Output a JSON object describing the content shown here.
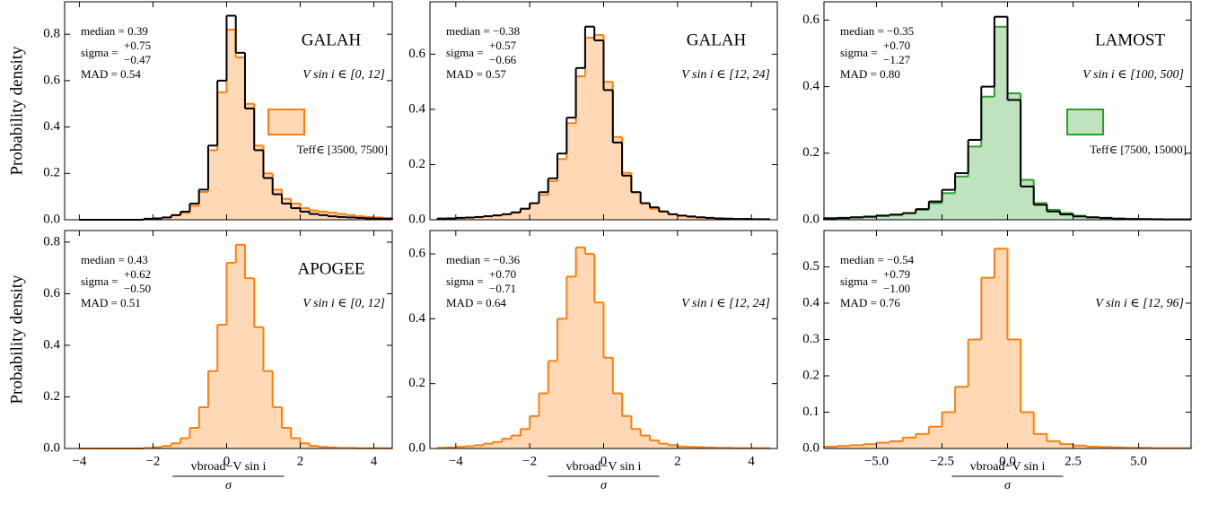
{
  "chart_data": [
    {
      "type": "histogram",
      "ylabel": "Probability density",
      "xlim": [
        -4.4,
        4.5
      ],
      "ylim": [
        0,
        0.94
      ],
      "xticks": [
        -4,
        -2,
        0,
        2,
        4
      ],
      "yticks": [
        {
          "value": 0,
          "label": "0.0"
        },
        0.2,
        0.4,
        0.6,
        0.8
      ],
      "bins": [
        -4,
        -3.75,
        -3.5,
        -3.25,
        -3,
        -2.75,
        -2.5,
        -2.25,
        -2,
        -1.75,
        -1.5,
        -1.25,
        -1,
        -0.75,
        -0.5,
        -0.25,
        0,
        0.25,
        0.5,
        0.75,
        1,
        1.25,
        1.5,
        1.75,
        2,
        2.25,
        2.5,
        2.75,
        3,
        3.25,
        3.5,
        3.75,
        4,
        4.25,
        4.5
      ],
      "series": [
        {
          "name": "Teff∈ [3500, 7500]",
          "color": "#ff7f0e",
          "fill": true,
          "values": [
            0,
            0,
            0,
            0,
            0,
            0,
            0,
            0.005,
            0.005,
            0.01,
            0.02,
            0.03,
            0.06,
            0.12,
            0.3,
            0.55,
            0.82,
            0.7,
            0.5,
            0.32,
            0.2,
            0.13,
            0.09,
            0.07,
            0.05,
            0.04,
            0.035,
            0.03,
            0.025,
            0.02,
            0.015,
            0.012,
            0.01,
            0.008
          ]
        },
        {
          "color": "#000000",
          "fill": false,
          "values": [
            0,
            0,
            0,
            0,
            0,
            0,
            0,
            0.004,
            0.006,
            0.01,
            0.02,
            0.035,
            0.07,
            0.13,
            0.32,
            0.6,
            0.88,
            0.72,
            0.48,
            0.3,
            0.18,
            0.11,
            0.07,
            0.05,
            0.035,
            0.025,
            0.02,
            0.015,
            0.012,
            0.01,
            0.008,
            0.006,
            0.005,
            0.004
          ]
        }
      ],
      "annotations": {
        "median": "median = 0.39",
        "sigma": "sigma =",
        "sigma_plus": "+0.75",
        "sigma_minus": "−0.47",
        "mad": "MAD = 0.54",
        "survey": "GALAH",
        "vsini": "V sin i ∈ [0, 12]"
      }
    },
    {
      "type": "histogram",
      "xlim": [
        -4.7,
        4.7
      ],
      "ylim": [
        0,
        0.79
      ],
      "xticks": [
        -4,
        -2,
        0,
        2,
        4
      ],
      "yticks": [
        {
          "value": 0,
          "label": "0.0"
        },
        0.2,
        0.4,
        0.6
      ],
      "bins": [
        -4.5,
        -4.25,
        -4,
        -3.75,
        -3.5,
        -3.25,
        -3,
        -2.75,
        -2.5,
        -2.25,
        -2,
        -1.75,
        -1.5,
        -1.25,
        -1,
        -0.75,
        -0.5,
        -0.25,
        0,
        0.25,
        0.5,
        0.75,
        1,
        1.25,
        1.5,
        1.75,
        2,
        2.25,
        2.5,
        2.75,
        3,
        3.25,
        3.5,
        3.75,
        4,
        4.25,
        4.5
      ],
      "series": [
        {
          "color": "#ff7f0e",
          "fill": true,
          "values": [
            0.005,
            0.005,
            0.006,
            0.008,
            0.01,
            0.012,
            0.015,
            0.02,
            0.025,
            0.04,
            0.06,
            0.09,
            0.14,
            0.22,
            0.35,
            0.52,
            0.66,
            0.67,
            0.5,
            0.3,
            0.17,
            0.1,
            0.06,
            0.04,
            0.03,
            0.02,
            0.015,
            0.01,
            0.008,
            0.006,
            0.005,
            0.004,
            0.003,
            0.003,
            0.002,
            0.002
          ]
        },
        {
          "color": "#000000",
          "fill": false,
          "values": [
            0.004,
            0.005,
            0.007,
            0.008,
            0.01,
            0.013,
            0.016,
            0.02,
            0.027,
            0.04,
            0.06,
            0.1,
            0.15,
            0.24,
            0.37,
            0.55,
            0.7,
            0.65,
            0.47,
            0.28,
            0.16,
            0.1,
            0.06,
            0.045,
            0.03,
            0.02,
            0.015,
            0.012,
            0.009,
            0.007,
            0.005,
            0.004,
            0.003,
            0.003,
            0.002,
            0.002
          ]
        }
      ],
      "annotations": {
        "median": "median = −0.38",
        "sigma": "sigma =",
        "sigma_plus": "+0.57",
        "sigma_minus": "−0.66",
        "mad": "MAD = 0.57",
        "survey": "GALAH",
        "vsini": "V sin i ∈ [12, 24]"
      }
    },
    {
      "type": "histogram",
      "xlim": [
        -7,
        7
      ],
      "ylim": [
        0,
        0.655
      ],
      "xticks": [
        -5,
        -2.5,
        0,
        2.5,
        5
      ],
      "yticks": [
        {
          "value": 0,
          "label": "0.0"
        },
        0.2,
        0.4,
        0.6
      ],
      "bins": [
        -7,
        -6.5,
        -6,
        -5.5,
        -5,
        -4.5,
        -4,
        -3.5,
        -3,
        -2.5,
        -2,
        -1.5,
        -1,
        -0.5,
        0,
        0.5,
        1,
        1.5,
        2,
        2.5,
        3,
        3.5,
        4,
        4.5,
        5,
        5.5,
        6,
        6.5,
        7
      ],
      "series": [
        {
          "name": "Teff∈ [7500, 15000]",
          "color": "#2ca02c",
          "fill": true,
          "values": [
            0.005,
            0.006,
            0.008,
            0.01,
            0.013,
            0.016,
            0.02,
            0.03,
            0.05,
            0.08,
            0.13,
            0.22,
            0.37,
            0.58,
            0.38,
            0.12,
            0.05,
            0.03,
            0.02,
            0.012,
            0.008,
            0.006,
            0.004,
            0.003,
            0.002,
            0.002,
            0.001,
            0.001
          ]
        },
        {
          "color": "#000000",
          "fill": false,
          "values": [
            0.004,
            0.005,
            0.007,
            0.009,
            0.012,
            0.015,
            0.02,
            0.032,
            0.055,
            0.09,
            0.14,
            0.24,
            0.4,
            0.61,
            0.36,
            0.1,
            0.045,
            0.025,
            0.016,
            0.01,
            0.007,
            0.005,
            0.003,
            0.002,
            0.002,
            0.001,
            0.001,
            0.001
          ]
        }
      ],
      "annotations": {
        "median": "median = −0.35",
        "sigma": "sigma =",
        "sigma_plus": "+0.70",
        "sigma_minus": "−1.27",
        "mad": "MAD = 0.80",
        "survey": "LAMOST",
        "vsini": "V sin i ∈ [100, 500]"
      }
    },
    {
      "type": "histogram",
      "ylabel": "Probability density",
      "xlabel": "vbroad−V sin i",
      "xlabel_denominator": "σ",
      "xlim": [
        -4.4,
        4.5
      ],
      "ylim": [
        0,
        0.845
      ],
      "xticks": [
        {
          "value": -4,
          "label": "−4"
        },
        {
          "value": -2,
          "label": "−2"
        },
        0,
        2,
        4
      ],
      "yticks": [
        {
          "value": 0,
          "label": "0.0"
        },
        0.2,
        0.4,
        0.6,
        0.8
      ],
      "bins": [
        -4,
        -3.75,
        -3.5,
        -3.25,
        -3,
        -2.75,
        -2.5,
        -2.25,
        -2,
        -1.75,
        -1.5,
        -1.25,
        -1,
        -0.75,
        -0.5,
        -0.25,
        0,
        0.25,
        0.5,
        0.75,
        1,
        1.25,
        1.5,
        1.75,
        2,
        2.25,
        2.5,
        2.75,
        3,
        3.25,
        3.5,
        3.75,
        4,
        4.25,
        4.5
      ],
      "series": [
        {
          "color": "#ff7f0e",
          "fill": true,
          "values": [
            0,
            0,
            0,
            0,
            0,
            0,
            0,
            0.002,
            0.005,
            0.01,
            0.02,
            0.04,
            0.08,
            0.16,
            0.3,
            0.48,
            0.72,
            0.79,
            0.66,
            0.47,
            0.3,
            0.16,
            0.08,
            0.04,
            0.02,
            0.01,
            0.006,
            0.004,
            0.002,
            0.002,
            0.001,
            0.001,
            0.001,
            0.001
          ]
        }
      ],
      "annotations": {
        "median": "median = 0.43",
        "sigma": "sigma =",
        "sigma_plus": "+0.62",
        "sigma_minus": "−0.50",
        "mad": "MAD = 0.51",
        "survey": "APOGEE",
        "vsini": "V sin i ∈ [0, 12]"
      }
    },
    {
      "type": "histogram",
      "xlabel": "vbroad−V sin i",
      "xlabel_denominator": "σ",
      "xlim": [
        -4.7,
        4.7
      ],
      "ylim": [
        0,
        0.672
      ],
      "xticks": [
        {
          "value": -4,
          "label": "−4"
        },
        {
          "value": -2,
          "label": "−2"
        },
        0,
        2,
        4
      ],
      "yticks": [
        {
          "value": 0,
          "label": "0.0"
        },
        0.2,
        0.4,
        0.6
      ],
      "bins": [
        -4.5,
        -4.25,
        -4,
        -3.75,
        -3.5,
        -3.25,
        -3,
        -2.75,
        -2.5,
        -2.25,
        -2,
        -1.75,
        -1.5,
        -1.25,
        -1,
        -0.75,
        -0.5,
        -0.25,
        0,
        0.25,
        0.5,
        0.75,
        1,
        1.25,
        1.5,
        1.75,
        2,
        2.25,
        2.5,
        2.75,
        3,
        3.25,
        3.5,
        3.75,
        4,
        4.25,
        4.5
      ],
      "series": [
        {
          "color": "#ff7f0e",
          "fill": true,
          "values": [
            0.002,
            0.003,
            0.005,
            0.007,
            0.01,
            0.015,
            0.02,
            0.03,
            0.04,
            0.06,
            0.1,
            0.17,
            0.27,
            0.4,
            0.53,
            0.62,
            0.6,
            0.45,
            0.28,
            0.17,
            0.1,
            0.06,
            0.04,
            0.025,
            0.015,
            0.01,
            0.006,
            0.005,
            0.004,
            0.003,
            0.002,
            0.002,
            0.001,
            0.001,
            0.001,
            0.001
          ]
        }
      ],
      "annotations": {
        "median": "median = −0.36",
        "sigma": "sigma =",
        "sigma_plus": "+0.70",
        "sigma_minus": "−0.71",
        "mad": "MAD = 0.64",
        "vsini": "V sin i ∈ [12, 24]"
      }
    },
    {
      "type": "histogram",
      "xlabel": "vbroad−V sin i",
      "xlabel_denominator": "σ",
      "xlim": [
        -7,
        7
      ],
      "ylim": [
        0,
        0.6
      ],
      "xticks": [
        {
          "value": -5,
          "label": "−5.0"
        },
        {
          "value": -2.5,
          "label": "−2.5"
        },
        {
          "value": 0,
          "label": "0.0"
        },
        2.5,
        {
          "value": 5,
          "label": "5.0"
        }
      ],
      "yticks": [
        {
          "value": 0,
          "label": "0.0"
        },
        0.1,
        0.2,
        0.3,
        0.4,
        0.5
      ],
      "bins": [
        -7,
        -6.5,
        -6,
        -5.5,
        -5,
        -4.5,
        -4,
        -3.5,
        -3,
        -2.5,
        -2,
        -1.5,
        -1,
        -0.5,
        0,
        0.5,
        1,
        1.5,
        2,
        2.5,
        3,
        3.5,
        4,
        4.5,
        5,
        5.5,
        6,
        6.5,
        7
      ],
      "series": [
        {
          "color": "#ff7f0e",
          "fill": true,
          "values": [
            0.005,
            0.007,
            0.009,
            0.012,
            0.016,
            0.02,
            0.03,
            0.04,
            0.06,
            0.1,
            0.17,
            0.3,
            0.47,
            0.55,
            0.3,
            0.1,
            0.04,
            0.02,
            0.012,
            0.008,
            0.005,
            0.004,
            0.003,
            0.002,
            0.002,
            0.001,
            0.001,
            0.001
          ]
        }
      ],
      "annotations": {
        "median": "median = −0.54",
        "sigma": "sigma =",
        "sigma_plus": "+0.79",
        "sigma_minus": "−1.00",
        "mad": "MAD = 0.76",
        "vsini": "V sin i ∈ [12, 96]"
      }
    }
  ]
}
